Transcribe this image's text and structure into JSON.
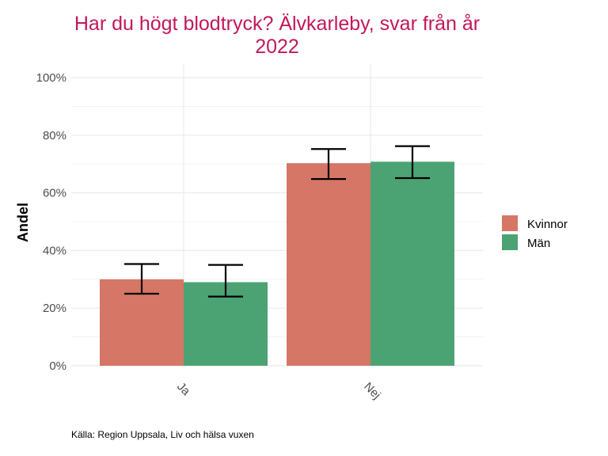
{
  "chart_data": {
    "type": "bar",
    "title_line1": "Har du högt blodtryck? Älvkarleby, svar från år",
    "title_line2": "2022",
    "ylabel": "Andel",
    "xlabel": "",
    "caption": "Källa: Region Uppsala, Liv och hälsa vuxen",
    "categories": [
      "Ja",
      "Nej"
    ],
    "ylim": [
      0,
      100
    ],
    "yticks": [
      0,
      20,
      40,
      60,
      80,
      100
    ],
    "ytick_labels": [
      "0%",
      "20%",
      "40%",
      "60%",
      "80%",
      "100%"
    ],
    "grid": true,
    "legend_position": "right",
    "series": [
      {
        "name": "Kvinnor",
        "color": "#d57667",
        "values": [
          30,
          70.3
        ],
        "error_low": [
          25,
          64.8
        ],
        "error_high": [
          35.3,
          75.2
        ]
      },
      {
        "name": "Män",
        "color": "#4ba373",
        "values": [
          29,
          70.8
        ],
        "error_low": [
          24,
          65.1
        ],
        "error_high": [
          35,
          76.2
        ]
      }
    ],
    "colors": {
      "title": "#c2185b",
      "error_bar": "#000000",
      "grid": "#ebebeb"
    }
  }
}
